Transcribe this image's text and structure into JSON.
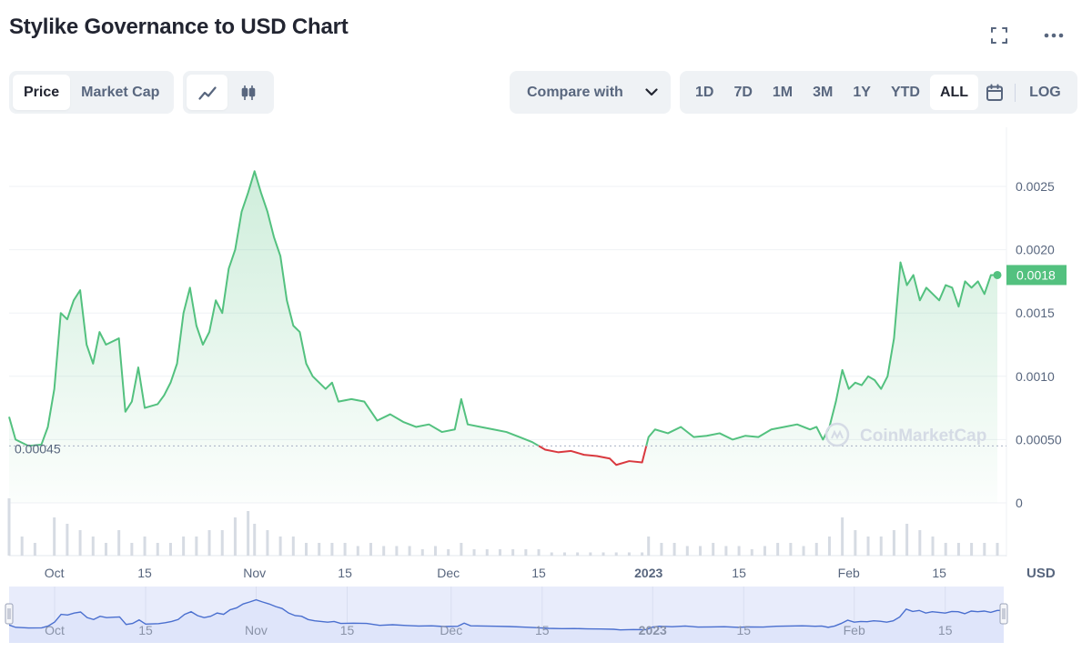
{
  "header": {
    "title": "Stylike Governance to USD Chart"
  },
  "toolbar": {
    "metric_tabs": [
      {
        "label": "Price",
        "active": true
      },
      {
        "label": "Market Cap",
        "active": false
      }
    ],
    "chart_type_icons": [
      "line-chart-icon",
      "candlestick-icon"
    ],
    "compare_label": "Compare with",
    "ranges": [
      {
        "label": "1D",
        "active": false
      },
      {
        "label": "7D",
        "active": false
      },
      {
        "label": "1M",
        "active": false
      },
      {
        "label": "3M",
        "active": false
      },
      {
        "label": "1Y",
        "active": false
      },
      {
        "label": "YTD",
        "active": false
      },
      {
        "label": "ALL",
        "active": true
      }
    ],
    "log_label": "LOG"
  },
  "colors": {
    "up": "#53c17f",
    "down": "#d9393f",
    "navigator": "#4a6fcf",
    "navigator_fill": "#e8ecfb",
    "grid": "#eff2f5",
    "axis_text": "#58667e"
  },
  "chart_data": {
    "type": "area",
    "title": "Stylike Governance to USD Chart",
    "currency_label": "USD",
    "y_ticks": [
      "0.0025",
      "0.0020",
      "0.0015",
      "0.0010",
      "0.00050",
      "0"
    ],
    "ylim": [
      0,
      0.0028
    ],
    "x_ticks": [
      "Oct",
      "15",
      "Nov",
      "15",
      "Dec",
      "15",
      "2023",
      "15",
      "Feb",
      "15"
    ],
    "x_range": [
      "2022-09-24",
      "2023-02-24"
    ],
    "reference_price": "0.00045",
    "current_price": "0.0018",
    "watermark": "CoinMarketCap",
    "series": [
      {
        "values": [
          [
            "2022-09-24",
            0.00068
          ],
          [
            "2022-09-25",
            0.0005
          ],
          [
            "2022-09-27",
            0.00045
          ],
          [
            "2022-09-29",
            0.00046
          ],
          [
            "2022-09-30",
            0.0006
          ],
          [
            "2022-10-01",
            0.0009
          ],
          [
            "2022-10-02",
            0.0015
          ],
          [
            "2022-10-03",
            0.00145
          ],
          [
            "2022-10-04",
            0.0016
          ],
          [
            "2022-10-05",
            0.00168
          ],
          [
            "2022-10-06",
            0.00125
          ],
          [
            "2022-10-07",
            0.0011
          ],
          [
            "2022-10-08",
            0.00135
          ],
          [
            "2022-10-09",
            0.00125
          ],
          [
            "2022-10-11",
            0.0013
          ],
          [
            "2022-10-12",
            0.00072
          ],
          [
            "2022-10-13",
            0.0008
          ],
          [
            "2022-10-14",
            0.00107
          ],
          [
            "2022-10-15",
            0.00075
          ],
          [
            "2022-10-17",
            0.00078
          ],
          [
            "2022-10-18",
            0.00085
          ],
          [
            "2022-10-19",
            0.00095
          ],
          [
            "2022-10-20",
            0.0011
          ],
          [
            "2022-10-21",
            0.0015
          ],
          [
            "2022-10-22",
            0.0017
          ],
          [
            "2022-10-23",
            0.0014
          ],
          [
            "2022-10-24",
            0.00125
          ],
          [
            "2022-10-25",
            0.00135
          ],
          [
            "2022-10-26",
            0.0016
          ],
          [
            "2022-10-27",
            0.0015
          ],
          [
            "2022-10-28",
            0.00185
          ],
          [
            "2022-10-29",
            0.002
          ],
          [
            "2022-10-30",
            0.0023
          ],
          [
            "2022-10-31",
            0.00245
          ],
          [
            "2022-11-01",
            0.00262
          ],
          [
            "2022-11-02",
            0.00245
          ],
          [
            "2022-11-03",
            0.0023
          ],
          [
            "2022-11-04",
            0.0021
          ],
          [
            "2022-11-05",
            0.00195
          ],
          [
            "2022-11-06",
            0.0016
          ],
          [
            "2022-11-07",
            0.0014
          ],
          [
            "2022-11-08",
            0.00135
          ],
          [
            "2022-11-09",
            0.0011
          ],
          [
            "2022-11-10",
            0.001
          ],
          [
            "2022-11-12",
            0.0009
          ],
          [
            "2022-11-13",
            0.00095
          ],
          [
            "2022-11-14",
            0.0008
          ],
          [
            "2022-11-16",
            0.00082
          ],
          [
            "2022-11-18",
            0.0008
          ],
          [
            "2022-11-20",
            0.00065
          ],
          [
            "2022-11-22",
            0.0007
          ],
          [
            "2022-11-24",
            0.00064
          ],
          [
            "2022-11-26",
            0.0006
          ],
          [
            "2022-11-28",
            0.00062
          ],
          [
            "2022-11-30",
            0.00056
          ],
          [
            "2022-12-02",
            0.00058
          ],
          [
            "2022-12-03",
            0.00082
          ],
          [
            "2022-12-04",
            0.00062
          ],
          [
            "2022-12-06",
            0.0006
          ],
          [
            "2022-12-08",
            0.00058
          ],
          [
            "2022-12-10",
            0.00056
          ],
          [
            "2022-12-12",
            0.00052
          ],
          [
            "2022-12-14",
            0.00048
          ],
          [
            "2022-12-16",
            0.00042
          ],
          [
            "2022-12-18",
            0.0004
          ],
          [
            "2022-12-20",
            0.00041
          ],
          [
            "2022-12-22",
            0.00038
          ],
          [
            "2022-12-24",
            0.00037
          ],
          [
            "2022-12-26",
            0.00035
          ],
          [
            "2022-12-27",
            0.0003
          ],
          [
            "2022-12-29",
            0.00033
          ],
          [
            "2022-12-31",
            0.00032
          ],
          [
            "2023-01-01",
            0.00052
          ],
          [
            "2023-01-02",
            0.00058
          ],
          [
            "2023-01-04",
            0.00055
          ],
          [
            "2023-01-06",
            0.0006
          ],
          [
            "2023-01-08",
            0.00052
          ],
          [
            "2023-01-10",
            0.00053
          ],
          [
            "2023-01-12",
            0.00055
          ],
          [
            "2023-01-14",
            0.0005
          ],
          [
            "2023-01-16",
            0.00053
          ],
          [
            "2023-01-18",
            0.00052
          ],
          [
            "2023-01-20",
            0.00058
          ],
          [
            "2023-01-22",
            0.0006
          ],
          [
            "2023-01-24",
            0.00062
          ],
          [
            "2023-01-26",
            0.00058
          ],
          [
            "2023-01-27",
            0.0006
          ],
          [
            "2023-01-28",
            0.0005
          ],
          [
            "2023-01-29",
            0.0006
          ],
          [
            "2023-01-30",
            0.0008
          ],
          [
            "2023-01-31",
            0.00105
          ],
          [
            "2023-02-01",
            0.0009
          ],
          [
            "2023-02-02",
            0.00095
          ],
          [
            "2023-02-03",
            0.00093
          ],
          [
            "2023-02-04",
            0.001
          ],
          [
            "2023-02-05",
            0.00097
          ],
          [
            "2023-02-06",
            0.0009
          ],
          [
            "2023-02-07",
            0.001
          ],
          [
            "2023-02-08",
            0.0013
          ],
          [
            "2023-02-09",
            0.0019
          ],
          [
            "2023-02-10",
            0.00172
          ],
          [
            "2023-02-11",
            0.0018
          ],
          [
            "2023-02-12",
            0.0016
          ],
          [
            "2023-02-13",
            0.0017
          ],
          [
            "2023-02-14",
            0.00165
          ],
          [
            "2023-02-15",
            0.0016
          ],
          [
            "2023-02-16",
            0.00172
          ],
          [
            "2023-02-17",
            0.0017
          ],
          [
            "2023-02-18",
            0.00155
          ],
          [
            "2023-02-19",
            0.00175
          ],
          [
            "2023-02-20",
            0.0017
          ],
          [
            "2023-02-21",
            0.00175
          ],
          [
            "2023-02-22",
            0.00165
          ],
          [
            "2023-02-23",
            0.0018
          ],
          [
            "2023-02-24",
            0.0018
          ]
        ]
      }
    ],
    "volume": [
      [
        "2022-09-24",
        0.9
      ],
      [
        "2022-09-26",
        0.3
      ],
      [
        "2022-09-28",
        0.2
      ],
      [
        "2022-10-01",
        0.6
      ],
      [
        "2022-10-03",
        0.5
      ],
      [
        "2022-10-05",
        0.4
      ],
      [
        "2022-10-07",
        0.3
      ],
      [
        "2022-10-09",
        0.2
      ],
      [
        "2022-10-11",
        0.4
      ],
      [
        "2022-10-13",
        0.2
      ],
      [
        "2022-10-15",
        0.3
      ],
      [
        "2022-10-17",
        0.2
      ],
      [
        "2022-10-19",
        0.2
      ],
      [
        "2022-10-21",
        0.3
      ],
      [
        "2022-10-23",
        0.3
      ],
      [
        "2022-10-25",
        0.4
      ],
      [
        "2022-10-27",
        0.4
      ],
      [
        "2022-10-29",
        0.6
      ],
      [
        "2022-10-31",
        0.7
      ],
      [
        "2022-11-01",
        0.5
      ],
      [
        "2022-11-03",
        0.4
      ],
      [
        "2022-11-05",
        0.3
      ],
      [
        "2022-11-07",
        0.3
      ],
      [
        "2022-11-09",
        0.2
      ],
      [
        "2022-11-11",
        0.2
      ],
      [
        "2022-11-13",
        0.2
      ],
      [
        "2022-11-15",
        0.2
      ],
      [
        "2022-11-17",
        0.15
      ],
      [
        "2022-11-19",
        0.2
      ],
      [
        "2022-11-21",
        0.15
      ],
      [
        "2022-11-23",
        0.15
      ],
      [
        "2022-11-25",
        0.15
      ],
      [
        "2022-11-27",
        0.1
      ],
      [
        "2022-11-29",
        0.15
      ],
      [
        "2022-12-01",
        0.1
      ],
      [
        "2022-12-03",
        0.2
      ],
      [
        "2022-12-05",
        0.1
      ],
      [
        "2022-12-07",
        0.1
      ],
      [
        "2022-12-09",
        0.1
      ],
      [
        "2022-12-11",
        0.1
      ],
      [
        "2022-12-13",
        0.1
      ],
      [
        "2022-12-15",
        0.1
      ],
      [
        "2022-12-17",
        0.05
      ],
      [
        "2022-12-19",
        0.05
      ],
      [
        "2022-12-21",
        0.05
      ],
      [
        "2022-12-23",
        0.05
      ],
      [
        "2022-12-25",
        0.05
      ],
      [
        "2022-12-27",
        0.05
      ],
      [
        "2022-12-29",
        0.05
      ],
      [
        "2022-12-31",
        0.05
      ],
      [
        "2023-01-01",
        0.3
      ],
      [
        "2023-01-03",
        0.2
      ],
      [
        "2023-01-05",
        0.2
      ],
      [
        "2023-01-07",
        0.15
      ],
      [
        "2023-01-09",
        0.15
      ],
      [
        "2023-01-11",
        0.2
      ],
      [
        "2023-01-13",
        0.15
      ],
      [
        "2023-01-15",
        0.15
      ],
      [
        "2023-01-17",
        0.1
      ],
      [
        "2023-01-19",
        0.15
      ],
      [
        "2023-01-21",
        0.2
      ],
      [
        "2023-01-23",
        0.2
      ],
      [
        "2023-01-25",
        0.15
      ],
      [
        "2023-01-27",
        0.2
      ],
      [
        "2023-01-29",
        0.3
      ],
      [
        "2023-01-31",
        0.6
      ],
      [
        "2023-02-02",
        0.4
      ],
      [
        "2023-02-04",
        0.3
      ],
      [
        "2023-02-06",
        0.3
      ],
      [
        "2023-02-08",
        0.4
      ],
      [
        "2023-02-10",
        0.5
      ],
      [
        "2023-02-12",
        0.4
      ],
      [
        "2023-02-14",
        0.3
      ],
      [
        "2023-02-16",
        0.2
      ],
      [
        "2023-02-18",
        0.2
      ],
      [
        "2023-02-20",
        0.2
      ],
      [
        "2023-02-22",
        0.2
      ],
      [
        "2023-02-24",
        0.2
      ]
    ]
  }
}
